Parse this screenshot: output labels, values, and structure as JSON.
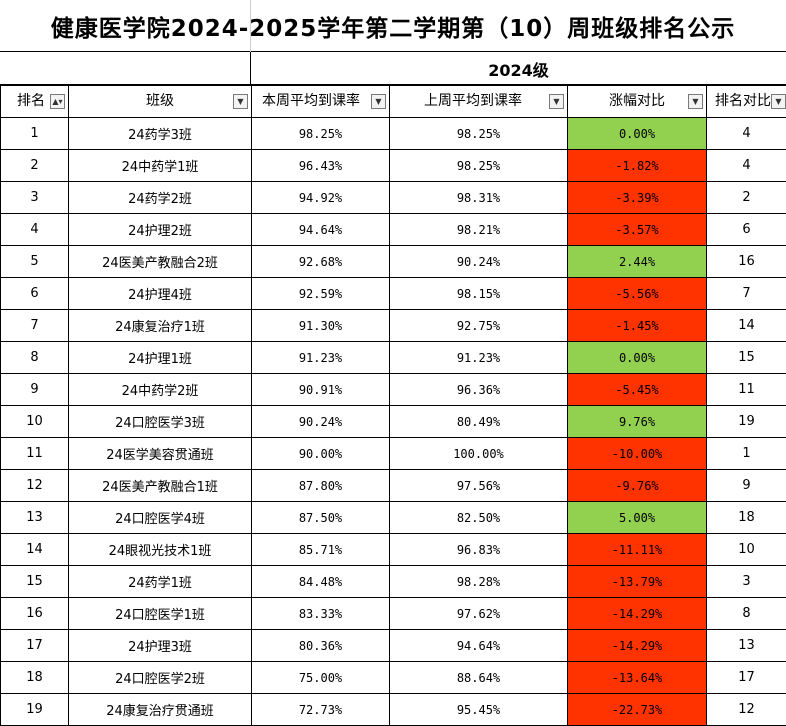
{
  "title": "健康医学院2024-2025学年第二学期第（10）周班级排名公示",
  "grade_label": "2024级",
  "colors": {
    "positive": "#92d050",
    "negative": "#ff3300"
  },
  "headers": {
    "rank": "排名",
    "class": "班级",
    "this_week": "本周平均到课率",
    "last_week": "上周平均到课率",
    "change": "涨幅对比",
    "rank_compare": "排名对比"
  },
  "icons": {
    "filter_active": "sort-filter-icon",
    "filter": "dropdown-arrow-icon"
  },
  "rows": [
    {
      "rank": "1",
      "class": "24药学3班",
      "this_week": "98.25%",
      "last_week": "98.25%",
      "change": "0.00%",
      "trend": "up",
      "prev_rank": "4"
    },
    {
      "rank": "2",
      "class": "24中药学1班",
      "this_week": "96.43%",
      "last_week": "98.25%",
      "change": "-1.82%",
      "trend": "down",
      "prev_rank": "4"
    },
    {
      "rank": "3",
      "class": "24药学2班",
      "this_week": "94.92%",
      "last_week": "98.31%",
      "change": "-3.39%",
      "trend": "down",
      "prev_rank": "2"
    },
    {
      "rank": "4",
      "class": "24护理2班",
      "this_week": "94.64%",
      "last_week": "98.21%",
      "change": "-3.57%",
      "trend": "down",
      "prev_rank": "6"
    },
    {
      "rank": "5",
      "class": "24医美产教融合2班",
      "this_week": "92.68%",
      "last_week": "90.24%",
      "change": "2.44%",
      "trend": "up",
      "prev_rank": "16"
    },
    {
      "rank": "6",
      "class": "24护理4班",
      "this_week": "92.59%",
      "last_week": "98.15%",
      "change": "-5.56%",
      "trend": "down",
      "prev_rank": "7"
    },
    {
      "rank": "7",
      "class": "24康复治疗1班",
      "this_week": "91.30%",
      "last_week": "92.75%",
      "change": "-1.45%",
      "trend": "down",
      "prev_rank": "14"
    },
    {
      "rank": "8",
      "class": "24护理1班",
      "this_week": "91.23%",
      "last_week": "91.23%",
      "change": "0.00%",
      "trend": "up",
      "prev_rank": "15"
    },
    {
      "rank": "9",
      "class": "24中药学2班",
      "this_week": "90.91%",
      "last_week": "96.36%",
      "change": "-5.45%",
      "trend": "down",
      "prev_rank": "11"
    },
    {
      "rank": "10",
      "class": "24口腔医学3班",
      "this_week": "90.24%",
      "last_week": "80.49%",
      "change": "9.76%",
      "trend": "up",
      "prev_rank": "19"
    },
    {
      "rank": "11",
      "class": "24医学美容贯通班",
      "this_week": "90.00%",
      "last_week": "100.00%",
      "change": "-10.00%",
      "trend": "down",
      "prev_rank": "1"
    },
    {
      "rank": "12",
      "class": "24医美产教融合1班",
      "this_week": "87.80%",
      "last_week": "97.56%",
      "change": "-9.76%",
      "trend": "down",
      "prev_rank": "9"
    },
    {
      "rank": "13",
      "class": "24口腔医学4班",
      "this_week": "87.50%",
      "last_week": "82.50%",
      "change": "5.00%",
      "trend": "up",
      "prev_rank": "18"
    },
    {
      "rank": "14",
      "class": "24眼视光技术1班",
      "this_week": "85.71%",
      "last_week": "96.83%",
      "change": "-11.11%",
      "trend": "down",
      "prev_rank": "10"
    },
    {
      "rank": "15",
      "class": "24药学1班",
      "this_week": "84.48%",
      "last_week": "98.28%",
      "change": "-13.79%",
      "trend": "down",
      "prev_rank": "3"
    },
    {
      "rank": "16",
      "class": "24口腔医学1班",
      "this_week": "83.33%",
      "last_week": "97.62%",
      "change": "-14.29%",
      "trend": "down",
      "prev_rank": "8"
    },
    {
      "rank": "17",
      "class": "24护理3班",
      "this_week": "80.36%",
      "last_week": "94.64%",
      "change": "-14.29%",
      "trend": "down",
      "prev_rank": "13"
    },
    {
      "rank": "18",
      "class": "24口腔医学2班",
      "this_week": "75.00%",
      "last_week": "88.64%",
      "change": "-13.64%",
      "trend": "down",
      "prev_rank": "17"
    },
    {
      "rank": "19",
      "class": "24康复治疗贯通班",
      "this_week": "72.73%",
      "last_week": "95.45%",
      "change": "-22.73%",
      "trend": "down",
      "prev_rank": "12"
    }
  ]
}
